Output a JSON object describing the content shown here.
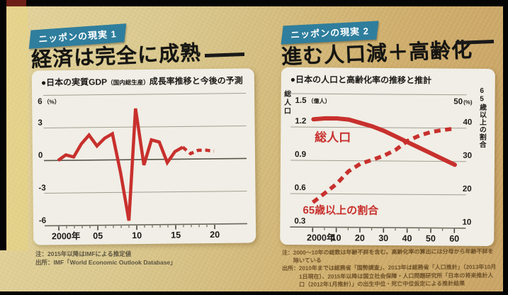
{
  "colors": {
    "badge_teal": "#2f7e9d",
    "line_red": "#c8302d",
    "paper_tan": "#d4bd7f",
    "card_bg": "#f0eee6"
  },
  "panels": [
    {
      "badge": "ニッポンの現実 1",
      "title": "経済は完全に成熟",
      "chart_header": {
        "prefix": "●日本の実質GDP",
        "paren": "（国内総生産）",
        "suffix": "成長率推移と今後の予測"
      },
      "notes": [
        "注：2015年以降はIMFによる推定値",
        "出所：IMF「World Economic Outlook Database」"
      ]
    },
    {
      "badge": "ニッポンの現実 2",
      "title": "進む人口減＋高齢化",
      "chart_header": {
        "prefix": "●日本の人口と高齢化率の推移と推計",
        "paren": "",
        "suffix": ""
      },
      "notes": [
        "注：2000～10年の総数は年齢不詳を含む。高齢化率の算出には分母から年齢不詳を",
        "　　除いている",
        "出所：2010年までは総務省「国勢調査」、2013年は総務省「人口推計」（2013年10月",
        "　　　1日現在）、2015年以降は国立社会保障・人口問題研究所「日本の将来推計人",
        "　　　口（2012年1月推計）」の出生中位・死亡中位仮定による推計結果"
      ]
    }
  ],
  "chart_data": [
    {
      "type": "line",
      "title": "日本の実質GDP（国内総生産）成長率推移と今後の予測",
      "ylabel": "%",
      "unit": "（%）",
      "ylim": [
        -6,
        6
      ],
      "yticks": [
        6,
        3,
        0,
        -3,
        -6
      ],
      "xtick_years": [
        2000,
        2005,
        2010,
        2015,
        2020
      ],
      "xtick_labels": [
        "2000年",
        "05",
        "10",
        "15",
        "20"
      ],
      "grid": true,
      "line_color": "#c8302d",
      "series": [
        {
          "name": "実質GDP成長率",
          "style": "solid-then-dashed",
          "solid_until": 2016,
          "x": [
            2000,
            2001,
            2002,
            2003,
            2004,
            2005,
            2006,
            2007,
            2008,
            2009,
            2010,
            2011,
            2012,
            2013,
            2014,
            2015,
            2016,
            2017,
            2018,
            2019,
            2020
          ],
          "values": [
            0.0,
            0.5,
            0.3,
            1.5,
            2.3,
            1.3,
            2.0,
            2.4,
            -1.2,
            -5.6,
            4.7,
            -0.5,
            1.8,
            1.6,
            -0.3,
            0.7,
            1.1,
            0.5,
            0.8,
            0.8,
            0.7
          ]
        }
      ]
    },
    {
      "type": "line",
      "title": "日本の人口と高齢化率の推移と推計",
      "left_axis": {
        "title": "総人口",
        "unit": "（億人）",
        "min": 0.3,
        "max": 1.5,
        "ticks": [
          1.5,
          1.2,
          0.9,
          0.6,
          0.3
        ]
      },
      "right_axis": {
        "title": "65歳以上の割合",
        "unit": "(%)",
        "min": 10,
        "max": 50,
        "ticks": [
          50,
          40,
          30,
          20,
          10
        ]
      },
      "xtick_years": [
        2000,
        2010,
        2020,
        2030,
        2040,
        2050,
        2060
      ],
      "xtick_labels": [
        "2000年",
        "10",
        "20",
        "30",
        "40",
        "50",
        "60"
      ],
      "grid": true,
      "line_color": "#c8302d",
      "series": [
        {
          "name": "総人口",
          "axis": "left",
          "style": "solid",
          "x": [
            2000,
            2005,
            2010,
            2015,
            2020,
            2025,
            2030,
            2035,
            2040,
            2045,
            2050,
            2055,
            2060
          ],
          "values": [
            1.27,
            1.28,
            1.28,
            1.27,
            1.24,
            1.21,
            1.17,
            1.12,
            1.07,
            1.02,
            0.97,
            0.92,
            0.87
          ]
        },
        {
          "name": "65歳以上の割合",
          "axis": "right",
          "style": "dashed",
          "x": [
            2000,
            2005,
            2010,
            2015,
            2020,
            2025,
            2030,
            2035,
            2040,
            2045,
            2050,
            2055,
            2060
          ],
          "values": [
            17.4,
            20.2,
            23.0,
            26.8,
            29.1,
            30.3,
            31.6,
            33.4,
            36.1,
            37.7,
            38.8,
            39.4,
            39.9
          ]
        }
      ]
    }
  ]
}
